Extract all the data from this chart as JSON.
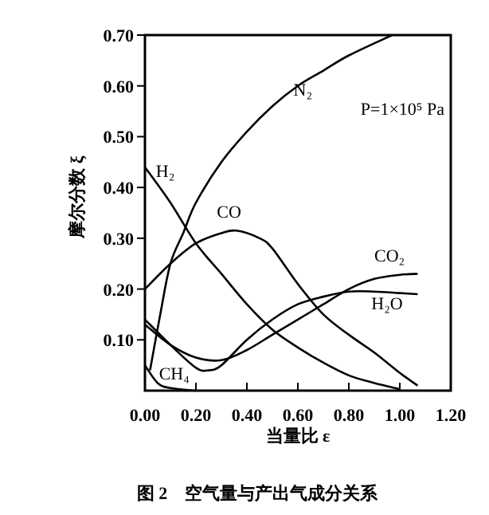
{
  "chart_data": {
    "type": "line",
    "title": "图 2    空气量与产出气成分关系",
    "xlabel": "当量比 ε",
    "ylabel": "摩尔分数 ξ",
    "annotations": [
      "P=1×10⁵ Pa"
    ],
    "xlim": [
      0,
      1.2
    ],
    "ylim": [
      0,
      0.7
    ],
    "xticks": [
      {
        "value": 0,
        "label": "0.00"
      },
      {
        "value": 0.2,
        "label": "0.20"
      },
      {
        "value": 0.4,
        "label": "0.40"
      },
      {
        "value": 0.6,
        "label": "0.60"
      },
      {
        "value": 0.8,
        "label": "0.80"
      },
      {
        "value": 1.0,
        "label": "1.00"
      },
      {
        "value": 1.2,
        "label": "1.20"
      }
    ],
    "yticks": [
      {
        "value": 0.1,
        "label": "0.10"
      },
      {
        "value": 0.2,
        "label": "0.20"
      },
      {
        "value": 0.3,
        "label": "0.30"
      },
      {
        "value": 0.4,
        "label": "0.40"
      },
      {
        "value": 0.5,
        "label": "0.50"
      },
      {
        "value": 0.6,
        "label": "0.60"
      },
      {
        "value": 0.7,
        "label": "0.70"
      }
    ],
    "grid": false,
    "legend": false,
    "marker": "none",
    "line_style": "solid",
    "series": [
      {
        "name": "N₂",
        "color": "#000000",
        "x": [
          0.02,
          0.06,
          0.1,
          0.15,
          0.2,
          0.3,
          0.4,
          0.5,
          0.6,
          0.7,
          0.8,
          0.97
        ],
        "values": [
          0.04,
          0.15,
          0.25,
          0.31,
          0.37,
          0.45,
          0.51,
          0.56,
          0.6,
          0.63,
          0.66,
          0.7
        ]
      },
      {
        "name": "H₂",
        "color": "#000000",
        "x": [
          0,
          0.1,
          0.2,
          0.3,
          0.4,
          0.5,
          0.6,
          0.7,
          0.8,
          0.9,
          1.0
        ],
        "values": [
          0.44,
          0.37,
          0.29,
          0.23,
          0.17,
          0.12,
          0.085,
          0.055,
          0.03,
          0.015,
          0.003
        ]
      },
      {
        "name": "CO",
        "color": "#000000",
        "x": [
          0,
          0.1,
          0.2,
          0.3,
          0.36,
          0.45,
          0.5,
          0.6,
          0.7,
          0.8,
          0.9,
          1.0,
          1.07
        ],
        "values": [
          0.2,
          0.25,
          0.29,
          0.31,
          0.315,
          0.3,
          0.28,
          0.21,
          0.15,
          0.11,
          0.075,
          0.035,
          0.01
        ]
      },
      {
        "name": "CO₂",
        "color": "#000000",
        "x": [
          0,
          0.1,
          0.2,
          0.3,
          0.4,
          0.5,
          0.6,
          0.7,
          0.8,
          0.9,
          1.0,
          1.07
        ],
        "values": [
          0.13,
          0.09,
          0.065,
          0.06,
          0.08,
          0.11,
          0.14,
          0.17,
          0.2,
          0.22,
          0.228,
          0.23
        ]
      },
      {
        "name": "H₂O",
        "color": "#000000",
        "x": [
          0,
          0.1,
          0.2,
          0.25,
          0.3,
          0.4,
          0.5,
          0.6,
          0.7,
          0.8,
          0.9,
          1.0,
          1.07
        ],
        "values": [
          0.14,
          0.09,
          0.045,
          0.04,
          0.05,
          0.1,
          0.14,
          0.17,
          0.185,
          0.195,
          0.195,
          0.192,
          0.19
        ]
      },
      {
        "name": "CH₄",
        "color": "#000000",
        "x": [
          0,
          0.05,
          0.1,
          0.2
        ],
        "values": [
          0.05,
          0.015,
          0.005,
          0.0
        ]
      }
    ]
  }
}
